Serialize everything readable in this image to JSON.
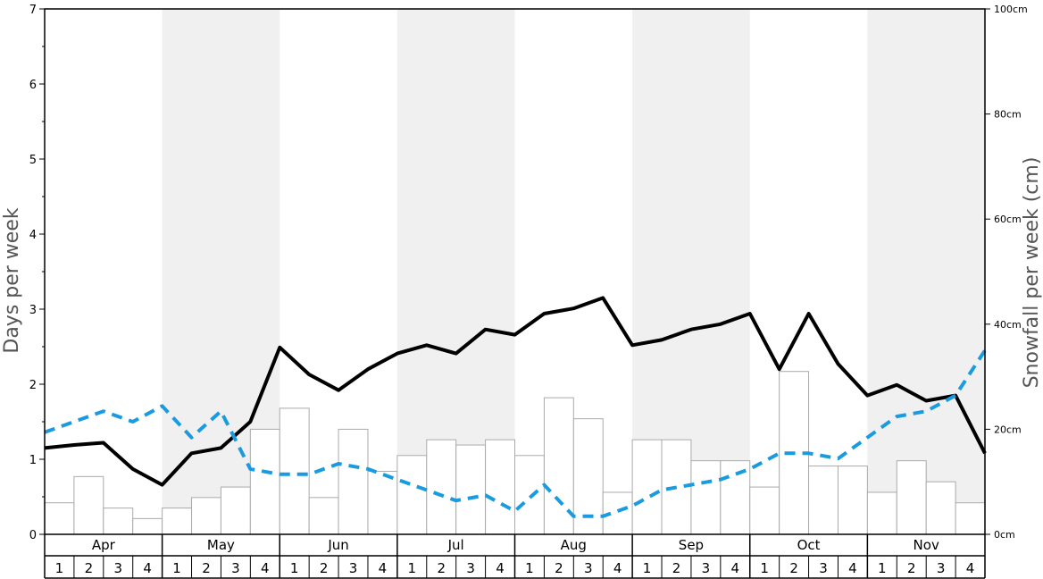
{
  "chart_data": {
    "type": "bar+line",
    "ylabel_left": "Days per week",
    "ylabel_right": "Snowfall per week (cm)",
    "ylim_left": [
      0,
      7
    ],
    "ylim_right": [
      0,
      100
    ],
    "yticks_left": [
      "0",
      "1",
      "2",
      "3",
      "4",
      "5",
      "6",
      "7"
    ],
    "yticks_right": [
      "0cm",
      "20cm",
      "40cm",
      "60cm",
      "80cm",
      "100cm"
    ],
    "months": [
      "Apr",
      "May",
      "Jun",
      "Jul",
      "Aug",
      "Sep",
      "Oct",
      "Nov"
    ],
    "weeks": [
      "1",
      "2",
      "3",
      "4"
    ],
    "alternating_band_color": "#f0f0f0",
    "series": [
      {
        "kind": "bar",
        "axis": "left",
        "color": "#ffffff",
        "stroke": "#aaaaaa",
        "values": [
          0.42,
          0.77,
          0.35,
          0.21,
          0.35,
          0.49,
          0.63,
          1.4,
          1.68,
          0.49,
          1.4,
          0.84,
          1.05,
          1.26,
          1.19,
          1.26,
          1.05,
          1.82,
          1.54,
          0.56,
          1.26,
          1.26,
          0.98,
          0.98,
          0.63,
          2.17,
          0.91,
          0.91,
          0.56,
          0.98,
          0.7,
          0.42
        ]
      },
      {
        "kind": "line",
        "axis": "left",
        "style": "solid",
        "color": "#000000",
        "values": [
          1.15,
          1.19,
          1.22,
          0.87,
          0.66,
          1.08,
          1.15,
          1.5,
          2.49,
          2.13,
          1.92,
          2.2,
          2.41,
          2.52,
          2.41,
          2.73,
          2.66,
          2.94,
          3.01,
          3.15,
          2.52,
          2.59,
          2.73,
          2.8,
          2.94,
          2.2,
          2.94,
          2.27,
          1.85,
          1.99,
          1.78,
          1.85,
          1.08
        ]
      },
      {
        "kind": "line",
        "axis": "left",
        "style": "dashed",
        "color": "#1a9be0",
        "values": [
          1.36,
          1.5,
          1.64,
          1.5,
          1.71,
          1.29,
          1.64,
          0.87,
          0.8,
          0.8,
          0.94,
          0.87,
          0.73,
          0.59,
          0.45,
          0.52,
          0.31,
          0.66,
          0.24,
          0.24,
          0.38,
          0.59,
          0.66,
          0.73,
          0.87,
          1.08,
          1.08,
          1.01,
          1.29,
          1.57,
          1.64,
          1.85,
          2.45
        ]
      }
    ],
    "grid": false,
    "legend": "none"
  }
}
